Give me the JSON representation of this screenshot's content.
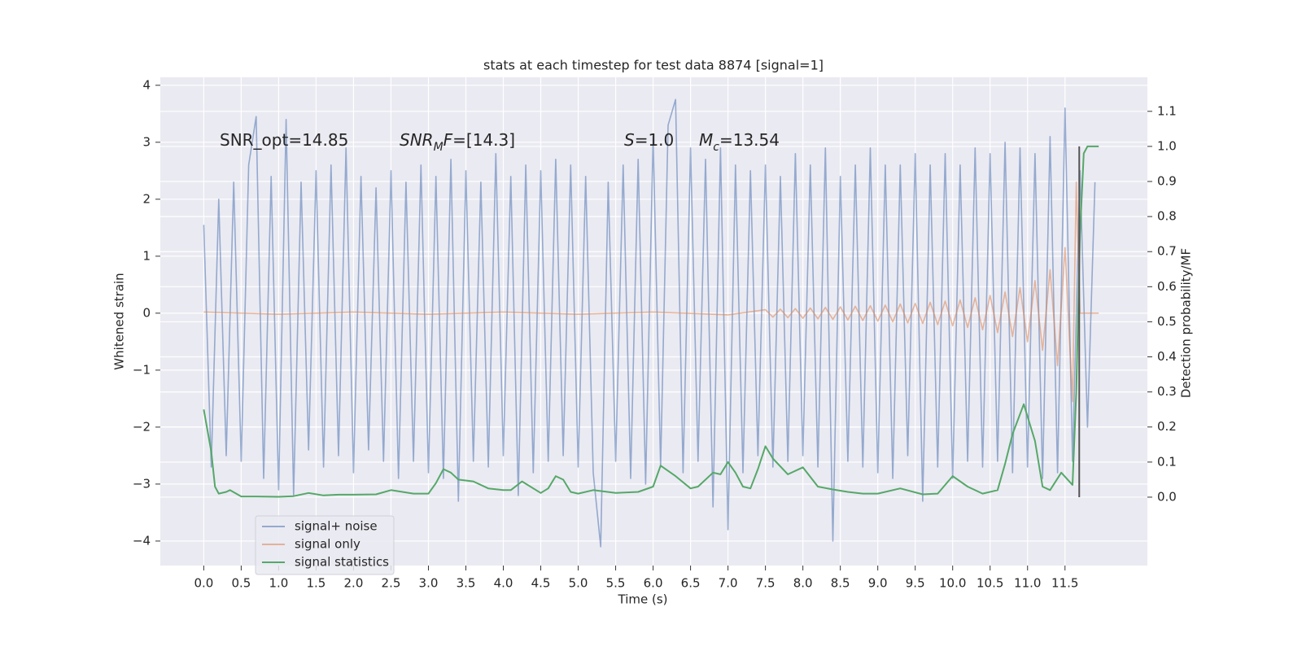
{
  "chart_data": {
    "type": "line",
    "title": "stats at each timestep for test data 8874 [signal=1]",
    "xlabel": "Time (s)",
    "ylabel": "Whitened strain",
    "y2label": "Detection probability/MF",
    "xlim": [
      -0.58,
      12.6
    ],
    "ylim": [
      -4.43,
      4.14
    ],
    "y2lim": [
      -0.195,
      1.197
    ],
    "xticks": [
      {
        "value": 0,
        "label": "0.0"
      },
      0.5,
      {
        "value": 1,
        "label": "1.0"
      },
      1.5,
      {
        "value": 2,
        "label": "2.0"
      },
      2.5,
      {
        "value": 3,
        "label": "3.0"
      },
      3.5,
      {
        "value": 4,
        "label": "4.0"
      },
      4.5,
      {
        "value": 5,
        "label": "5.0"
      },
      5.5,
      {
        "value": 6,
        "label": "6.0"
      },
      6.5,
      {
        "value": 7,
        "label": "7.0"
      },
      7.5,
      {
        "value": 8,
        "label": "8.0"
      },
      8.5,
      {
        "value": 9,
        "label": "9.0"
      },
      9.5,
      {
        "value": 10,
        "label": "10.0"
      },
      10.5,
      {
        "value": 11,
        "label": "11.0"
      },
      11.5
    ],
    "yticks": [
      {
        "value": -4,
        "label": "−4"
      },
      {
        "value": -3,
        "label": "−3"
      },
      {
        "value": -2,
        "label": "−2"
      },
      {
        "value": -1,
        "label": "−1"
      },
      0,
      1,
      2,
      3,
      4
    ],
    "y2ticks": [
      {
        "value": 0,
        "label": "0.0"
      },
      0.1,
      0.2,
      0.3,
      0.4,
      0.5,
      0.6,
      0.7,
      0.8,
      0.9,
      {
        "value": 1,
        "label": "1.0"
      },
      1.1
    ],
    "grid": true,
    "legend": "lower left",
    "annotations": [
      [
        {
          "text": "SNR_opt=14.85"
        }
      ],
      [
        {
          "text": "SNR",
          "italic": true
        },
        {
          "text": "M",
          "italic": true,
          "sub": true
        },
        {
          "text": "F",
          "italic": true
        },
        {
          "text": "=[14.3]"
        }
      ],
      [
        {
          "text": "S",
          "italic": true
        },
        {
          "text": "=1.0"
        }
      ],
      [
        {
          "text": "M",
          "italic": true
        },
        {
          "text": "c",
          "italic": true,
          "sub": true
        },
        {
          "text": "=13.54"
        }
      ]
    ],
    "vline": {
      "x": 11.69,
      "ymin": 0.0,
      "ymax": 1.0,
      "color": "#555555"
    },
    "series": [
      {
        "name": "signal+ noise",
        "color": "#4c72b0",
        "alpha": 0.55,
        "axis": "y",
        "x": [
          0.0,
          0.1,
          0.2,
          0.3,
          0.4,
          0.5,
          0.6,
          0.7,
          0.8,
          0.9,
          1.0,
          1.1,
          1.2,
          1.3,
          1.4,
          1.5,
          1.6,
          1.7,
          1.8,
          1.9,
          2.0,
          2.1,
          2.2,
          2.3,
          2.4,
          2.5,
          2.6,
          2.7,
          2.8,
          2.9,
          3.0,
          3.1,
          3.2,
          3.3,
          3.4,
          3.5,
          3.6,
          3.7,
          3.8,
          3.9,
          4.0,
          4.1,
          4.2,
          4.3,
          4.4,
          4.5,
          4.6,
          4.7,
          4.8,
          4.9,
          5.0,
          5.1,
          5.2,
          5.3,
          5.4,
          5.5,
          5.6,
          5.7,
          5.8,
          5.9,
          6.0,
          6.1,
          6.2,
          6.3,
          6.4,
          6.5,
          6.6,
          6.7,
          6.8,
          6.9,
          7.0,
          7.1,
          7.2,
          7.3,
          7.4,
          7.5,
          7.6,
          7.7,
          7.8,
          7.9,
          8.0,
          8.1,
          8.2,
          8.3,
          8.4,
          8.5,
          8.6,
          8.7,
          8.8,
          8.9,
          9.0,
          9.1,
          9.2,
          9.3,
          9.4,
          9.5,
          9.6,
          9.7,
          9.8,
          9.9,
          10.0,
          10.1,
          10.2,
          10.3,
          10.4,
          10.5,
          10.6,
          10.7,
          10.8,
          10.9,
          11.0,
          11.1,
          11.2,
          11.3,
          11.4,
          11.5,
          11.6,
          11.7,
          11.8,
          11.9
        ],
        "values": [
          1.55,
          -2.7,
          2.0,
          -2.5,
          2.3,
          -2.6,
          2.6,
          3.45,
          -2.9,
          2.4,
          -3.1,
          3.4,
          -3.2,
          2.3,
          -2.4,
          2.5,
          -2.7,
          2.6,
          -2.5,
          2.9,
          -2.8,
          2.4,
          -2.4,
          2.2,
          -2.6,
          2.5,
          -2.9,
          2.3,
          -2.6,
          2.6,
          -2.8,
          2.4,
          -2.9,
          2.7,
          -3.3,
          2.5,
          -2.6,
          2.3,
          -2.7,
          2.8,
          -2.5,
          2.4,
          -3.2,
          2.6,
          -2.8,
          2.5,
          -2.6,
          2.7,
          -2.5,
          2.6,
          -2.7,
          2.4,
          -2.8,
          -4.1,
          2.3,
          -2.6,
          2.6,
          -2.9,
          2.7,
          -3.0,
          3.1,
          -2.7,
          3.3,
          3.75,
          -2.8,
          2.9,
          -2.6,
          2.7,
          -3.4,
          2.9,
          -3.8,
          2.6,
          -2.8,
          2.5,
          -2.5,
          2.6,
          -2.7,
          2.4,
          -2.6,
          2.8,
          -2.5,
          2.6,
          -2.7,
          2.9,
          -4.0,
          2.4,
          -2.6,
          2.6,
          -2.7,
          2.9,
          -2.8,
          2.6,
          -2.9,
          2.6,
          -2.5,
          2.8,
          -3.3,
          2.6,
          -2.7,
          2.8,
          -2.9,
          2.6,
          -2.6,
          2.9,
          -2.7,
          2.8,
          -2.6,
          3.0,
          -2.8,
          2.9,
          -2.7,
          2.8,
          -2.9,
          3.1,
          -2.8,
          3.6,
          -2.6,
          2.5,
          -2.0,
          2.3
        ]
      },
      {
        "name": "signal only",
        "color": "#dd8452",
        "alpha": 0.55,
        "axis": "y",
        "x": [
          0,
          1,
          2,
          3,
          4,
          5,
          6,
          7,
          7.5,
          7.6,
          7.7,
          7.8,
          7.9,
          8.0,
          8.1,
          8.2,
          8.3,
          8.4,
          8.5,
          8.6,
          8.7,
          8.8,
          8.9,
          9.0,
          9.1,
          9.2,
          9.3,
          9.4,
          9.5,
          9.6,
          9.7,
          9.8,
          9.9,
          10.0,
          10.1,
          10.2,
          10.3,
          10.4,
          10.5,
          10.6,
          10.7,
          10.8,
          10.9,
          11.0,
          11.1,
          11.2,
          11.3,
          11.4,
          11.5,
          11.6,
          11.65,
          11.7,
          11.95
        ],
        "values": [
          0.02,
          -0.02,
          0.02,
          -0.02,
          0.02,
          -0.02,
          0.02,
          -0.03,
          0.06,
          -0.07,
          0.07,
          -0.08,
          0.08,
          -0.09,
          0.09,
          -0.1,
          0.1,
          -0.11,
          0.11,
          -0.12,
          0.12,
          -0.13,
          0.13,
          -0.14,
          0.14,
          -0.15,
          0.16,
          -0.17,
          0.17,
          -0.18,
          0.19,
          -0.2,
          0.21,
          -0.22,
          0.23,
          -0.25,
          0.27,
          -0.29,
          0.31,
          -0.34,
          0.37,
          -0.41,
          0.45,
          -0.5,
          0.57,
          -0.65,
          0.76,
          -0.92,
          1.15,
          -1.55,
          2.3,
          0.0,
          0.0
        ]
      },
      {
        "name": "signal statistics",
        "color": "#55a868",
        "alpha": 1,
        "axis": "y2",
        "x": [
          0.0,
          0.1,
          0.15,
          0.2,
          0.3,
          0.35,
          0.5,
          0.7,
          1.0,
          1.2,
          1.4,
          1.6,
          1.8,
          2.0,
          2.3,
          2.5,
          2.8,
          3.0,
          3.1,
          3.2,
          3.3,
          3.4,
          3.6,
          3.8,
          4.0,
          4.1,
          4.25,
          4.5,
          4.6,
          4.7,
          4.8,
          4.9,
          5.0,
          5.2,
          5.5,
          5.8,
          6.0,
          6.1,
          6.3,
          6.5,
          6.6,
          6.8,
          6.9,
          7.0,
          7.1,
          7.2,
          7.3,
          7.4,
          7.5,
          7.6,
          7.8,
          8.0,
          8.2,
          8.4,
          8.6,
          8.8,
          9.0,
          9.3,
          9.6,
          9.8,
          10.0,
          10.2,
          10.4,
          10.6,
          10.7,
          10.8,
          10.95,
          11.1,
          11.2,
          11.3,
          11.45,
          11.6,
          11.65,
          11.7,
          11.75,
          11.8,
          11.95
        ],
        "values": [
          0.25,
          0.13,
          0.03,
          0.01,
          0.015,
          0.02,
          0.002,
          0.002,
          0.001,
          0.003,
          0.012,
          0.005,
          0.007,
          0.007,
          0.008,
          0.02,
          0.01,
          0.01,
          0.04,
          0.08,
          0.07,
          0.05,
          0.045,
          0.025,
          0.02,
          0.02,
          0.045,
          0.012,
          0.025,
          0.06,
          0.05,
          0.015,
          0.01,
          0.02,
          0.012,
          0.015,
          0.03,
          0.09,
          0.06,
          0.025,
          0.03,
          0.07,
          0.065,
          0.1,
          0.07,
          0.03,
          0.025,
          0.08,
          0.145,
          0.11,
          0.065,
          0.085,
          0.03,
          0.022,
          0.015,
          0.01,
          0.01,
          0.025,
          0.008,
          0.01,
          0.06,
          0.03,
          0.01,
          0.02,
          0.095,
          0.18,
          0.265,
          0.16,
          0.03,
          0.02,
          0.07,
          0.035,
          0.3,
          0.75,
          0.98,
          1.0,
          1.0
        ]
      }
    ]
  }
}
